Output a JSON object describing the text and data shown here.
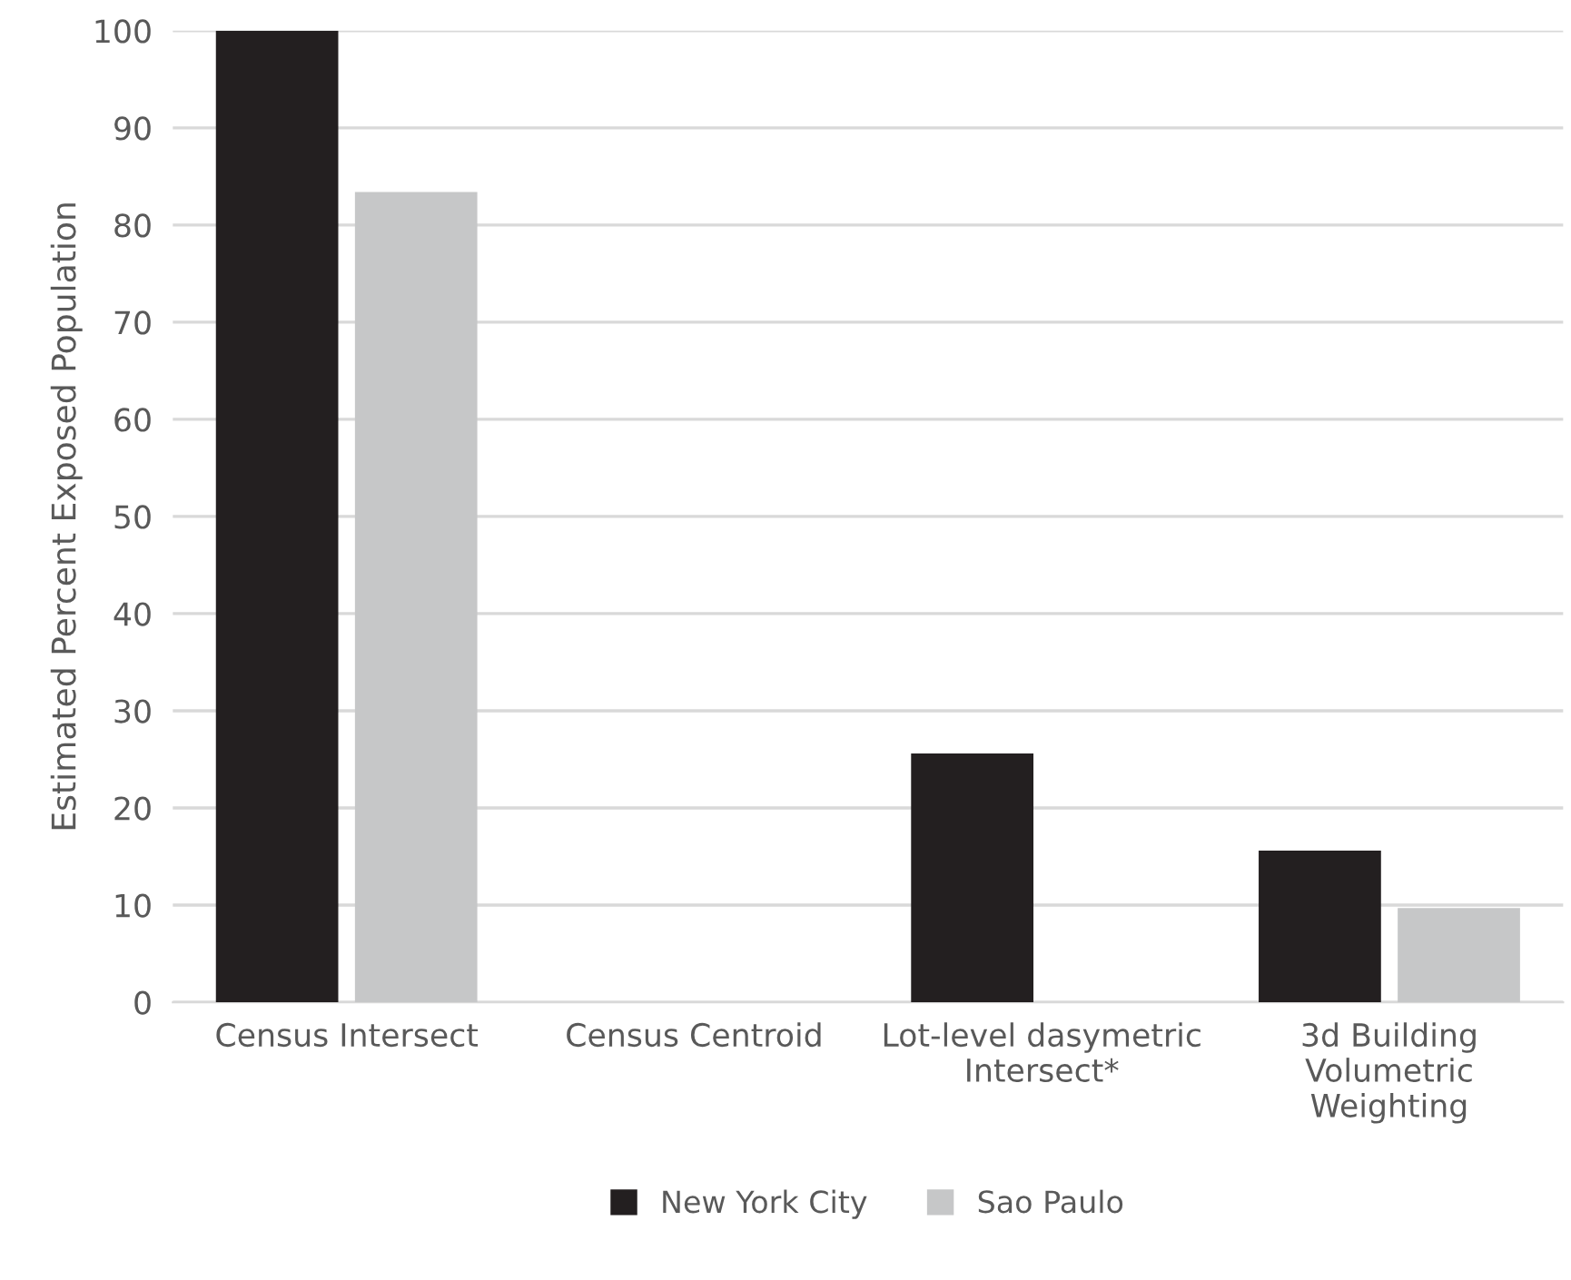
{
  "chart_data": {
    "type": "bar",
    "ylabel": "Estimated Percent Exposed Population",
    "categories": [
      "Census Intersect",
      "Census Centroid",
      "Lot-level dasymetric\nIntersect*",
      "3d Building\nVolumetric\nWeighting"
    ],
    "series": [
      {
        "name": "New York City",
        "color": "#231f20",
        "values": [
          100,
          0,
          25.6,
          15.6
        ]
      },
      {
        "name": "Sao Paulo",
        "color": "#c6c7c8",
        "values": [
          83.4,
          0,
          0,
          9.7
        ]
      }
    ],
    "ylim": [
      0,
      100
    ],
    "yticks": [
      0,
      10,
      20,
      30,
      40,
      50,
      60,
      70,
      80,
      90,
      100
    ],
    "grid": "y",
    "legend": "bottom"
  }
}
